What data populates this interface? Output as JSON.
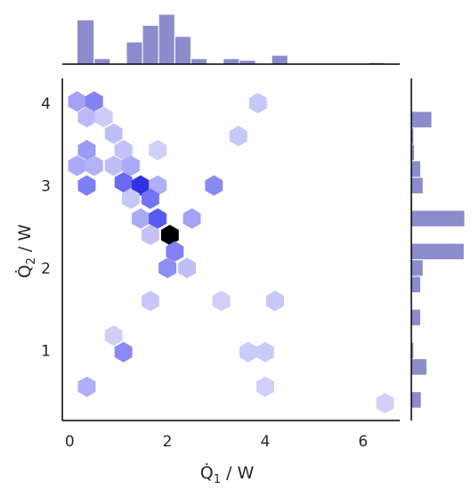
{
  "chart_data": {
    "type": "hexbin_joint",
    "colors": {
      "bar": "#8c8ccc",
      "bar_edge": "#ffffff",
      "hex_low": "#ecebfa",
      "hex_mid": "#3535f0",
      "hex_high": "#000000",
      "axis": "#000000",
      "text": "#262626"
    },
    "axes": {
      "xlabel_main": "Q̇",
      "xlabel_sub": "1",
      "xlabel_unit": " / W",
      "ylabel_main": "Q̇",
      "ylabel_sub": "2",
      "ylabel_unit": " / W",
      "xlim": [
        -0.15,
        6.75
      ],
      "ylim": [
        0.15,
        4.3
      ],
      "xticks": [
        0,
        2,
        4,
        6
      ],
      "yticks": [
        1,
        2,
        3,
        4
      ],
      "xtick_labels": [
        "0",
        "2",
        "4",
        "6"
      ],
      "ytick_labels": [
        "1",
        "2",
        "3",
        "4"
      ]
    },
    "hexbins": [
      {
        "x": 0.15,
        "y": 4.02,
        "count": 1.8
      },
      {
        "x": 0.5,
        "y": 4.02,
        "count": 2.6
      },
      {
        "x": 0.35,
        "y": 3.83,
        "count": 1.2
      },
      {
        "x": 0.7,
        "y": 3.83,
        "count": 0.8
      },
      {
        "x": 0.9,
        "y": 3.63,
        "count": 1.1
      },
      {
        "x": 1.1,
        "y": 3.43,
        "count": 1.0
      },
      {
        "x": 1.8,
        "y": 3.43,
        "count": 0.7
      },
      {
        "x": 0.35,
        "y": 3.43,
        "count": 2.0
      },
      {
        "x": 0.15,
        "y": 3.24,
        "count": 1.6
      },
      {
        "x": 0.5,
        "y": 3.24,
        "count": 1.4
      },
      {
        "x": 0.9,
        "y": 3.24,
        "count": 1.1
      },
      {
        "x": 1.25,
        "y": 3.24,
        "count": 1.6
      },
      {
        "x": 0.35,
        "y": 3.0,
        "count": 2.7
      },
      {
        "x": 1.1,
        "y": 3.04,
        "count": 3.2
      },
      {
        "x": 1.45,
        "y": 3.0,
        "count": 4.6
      },
      {
        "x": 1.8,
        "y": 3.0,
        "count": 1.5
      },
      {
        "x": 2.95,
        "y": 3.0,
        "count": 2.4
      },
      {
        "x": 1.25,
        "y": 2.84,
        "count": 0.9
      },
      {
        "x": 1.65,
        "y": 2.84,
        "count": 3.0
      },
      {
        "x": 1.45,
        "y": 2.6,
        "count": 1.6
      },
      {
        "x": 1.8,
        "y": 2.6,
        "count": 3.6
      },
      {
        "x": 2.5,
        "y": 2.6,
        "count": 1.8
      },
      {
        "x": 1.65,
        "y": 2.4,
        "count": 1.0
      },
      {
        "x": 2.05,
        "y": 2.4,
        "count": 6.0
      },
      {
        "x": 2.15,
        "y": 2.2,
        "count": 2.6
      },
      {
        "x": 2.0,
        "y": 2.0,
        "count": 2.3
      },
      {
        "x": 2.4,
        "y": 2.0,
        "count": 1.1
      },
      {
        "x": 3.45,
        "y": 3.6,
        "count": 0.9
      },
      {
        "x": 3.85,
        "y": 4.0,
        "count": 0.9
      },
      {
        "x": 1.65,
        "y": 1.6,
        "count": 0.9
      },
      {
        "x": 3.1,
        "y": 1.6,
        "count": 0.7
      },
      {
        "x": 4.2,
        "y": 1.6,
        "count": 0.9
      },
      {
        "x": 0.9,
        "y": 1.18,
        "count": 0.7
      },
      {
        "x": 1.1,
        "y": 0.98,
        "count": 2.4
      },
      {
        "x": 3.65,
        "y": 0.98,
        "count": 0.8
      },
      {
        "x": 4.0,
        "y": 0.98,
        "count": 0.8
      },
      {
        "x": 0.35,
        "y": 0.56,
        "count": 1.5
      },
      {
        "x": 4.0,
        "y": 0.56,
        "count": 0.7
      },
      {
        "x": 6.45,
        "y": 0.36,
        "count": 0.7
      }
    ],
    "hist_x": {
      "bin_edges": [
        0.15,
        0.5,
        0.83,
        1.16,
        1.49,
        1.82,
        2.15,
        2.48,
        2.81,
        3.14,
        3.47,
        3.8,
        4.13,
        4.46,
        4.79,
        5.12,
        5.45,
        5.78,
        6.11,
        6.44,
        6.77
      ],
      "counts": [
        8,
        1,
        0,
        4,
        7,
        9,
        5,
        1,
        0,
        1,
        0.7,
        0,
        1.6,
        0,
        0,
        0,
        0,
        0,
        0.3,
        0
      ]
    },
    "hist_y": {
      "bin_edges": [
        0.3,
        0.5,
        0.7,
        0.9,
        1.1,
        1.3,
        1.5,
        1.7,
        1.9,
        2.1,
        2.3,
        2.5,
        2.7,
        2.9,
        3.1,
        3.3,
        3.5,
        3.7,
        3.9,
        4.1,
        4.3
      ],
      "counts": [
        1.6,
        0,
        2.5,
        0.4,
        0,
        1.5,
        0,
        1.5,
        1.9,
        8.5,
        0,
        8.6,
        0.2,
        1.9,
        1.5,
        0.5,
        0.4,
        3.3,
        0,
        0
      ]
    }
  }
}
